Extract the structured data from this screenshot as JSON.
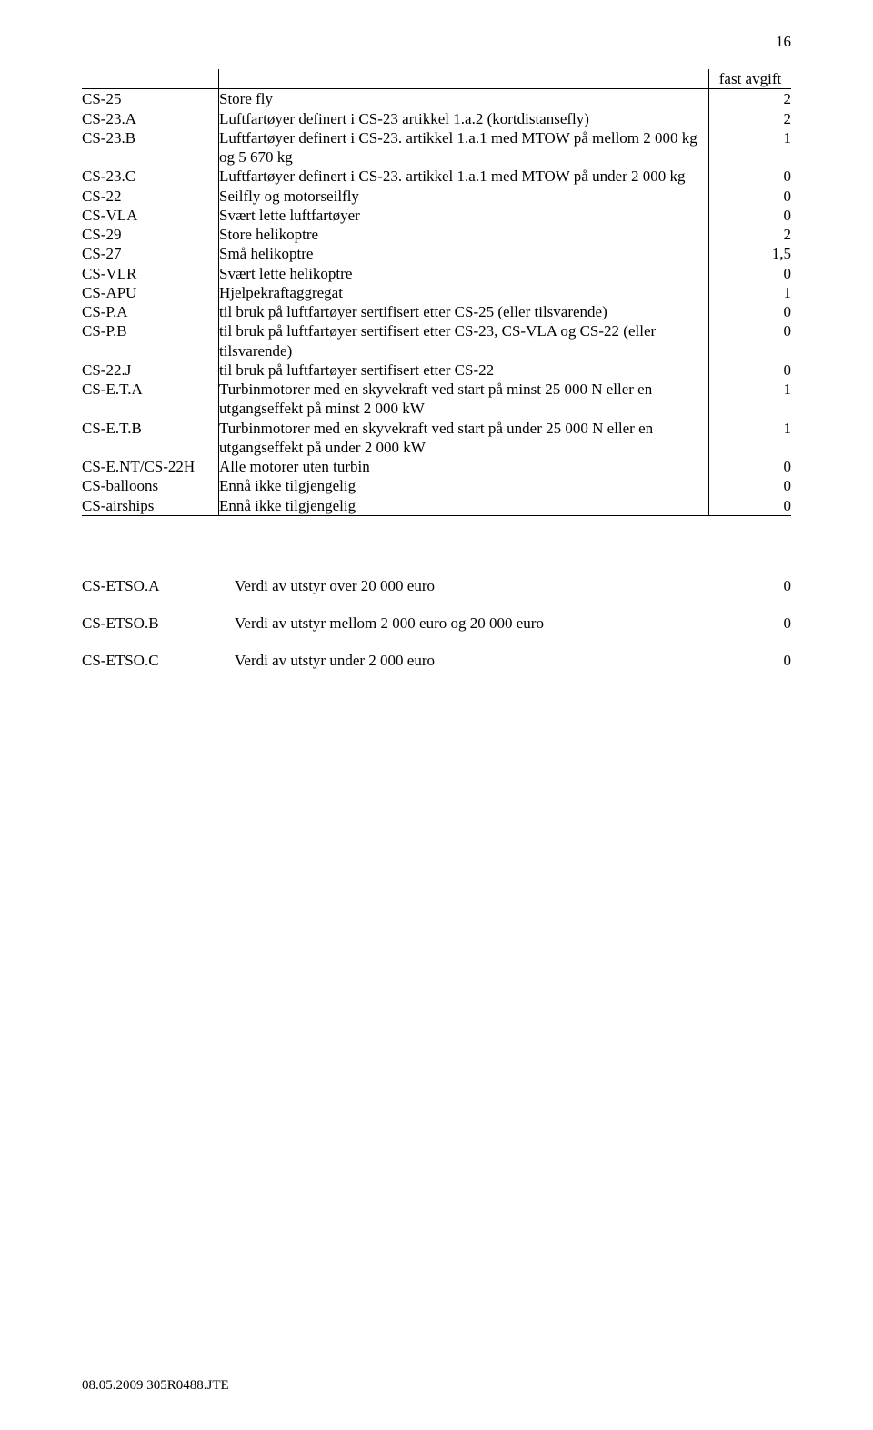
{
  "page_number": "16",
  "header": {
    "col3": "fast avgift"
  },
  "rows": [
    {
      "code": "CS-25",
      "desc": "Store fly",
      "val": "2"
    },
    {
      "code": "CS-23.A",
      "desc": "Luftfartøyer definert i CS-23 artikkel 1.a.2 (kortdistansefly)",
      "val": "2"
    },
    {
      "code": "CS-23.B",
      "desc": "Luftfartøyer definert i CS-23. artikkel 1.a.1 med MTOW på mellom 2 000 kg og 5 670 kg",
      "val": "1"
    },
    {
      "code": "CS-23.C",
      "desc": "Luftfartøyer definert i CS-23. artikkel 1.a.1 med MTOW på under 2 000 kg",
      "val": "0"
    },
    {
      "code": "CS-22",
      "desc": "Seilfly og motorseilfly",
      "val": "0"
    },
    {
      "code": "CS-VLA",
      "desc": "Svært lette luftfartøyer",
      "val": "0"
    },
    {
      "code": "CS-29",
      "desc": "Store helikoptre",
      "val": "2"
    },
    {
      "code": "CS-27",
      "desc": "Små helikoptre",
      "val": "1,5"
    },
    {
      "code": "CS-VLR",
      "desc": "Svært lette helikoptre",
      "val": "0"
    },
    {
      "code": "CS-APU",
      "desc": "Hjelpekraftaggregat",
      "val": "1"
    },
    {
      "code": "CS-P.A",
      "desc": "til bruk på luftfartøyer sertifisert etter CS-25 (eller tilsvarende)",
      "val": "0"
    },
    {
      "code": "CS-P.B",
      "desc": "til bruk på luftfartøyer sertifisert etter CS-23, CS-VLA og CS-22 (eller tilsvarende)",
      "val": "0"
    },
    {
      "code": "CS-22.J",
      "desc": "til bruk på luftfartøyer sertifisert etter CS-22",
      "val": "0"
    },
    {
      "code": "CS-E.T.A",
      "desc": "Turbinmotorer med en skyvekraft ved start på minst 25 000 N eller en utgangseffekt på minst 2 000 kW",
      "val": "1"
    },
    {
      "code": "CS-E.T.B",
      "desc": "Turbinmotorer med en skyvekraft ved start på under 25 000 N eller en utgangseffekt på under 2 000 kW",
      "val": "1"
    },
    {
      "code": "CS-E.NT/CS-22H",
      "desc": "Alle motorer uten turbin",
      "val": "0"
    },
    {
      "code": "CS-balloons",
      "desc": "Ennå ikke tilgjengelig",
      "val": "0"
    },
    {
      "code": "CS-airships",
      "desc": "Ennå ikke tilgjengelig",
      "val": "0"
    }
  ],
  "sub_rows": [
    {
      "code": "CS-ETSO.A",
      "desc": "Verdi av utstyr over 20 000 euro",
      "val": "0"
    },
    {
      "code": "CS-ETSO.B",
      "desc": "Verdi av utstyr mellom 2 000 euro og 20 000 euro",
      "val": "0"
    },
    {
      "code": "CS-ETSO.C",
      "desc": "Verdi av utstyr under 2 000 euro",
      "val": "0"
    }
  ],
  "footer": "08.05.2009   305R0488.JTE"
}
